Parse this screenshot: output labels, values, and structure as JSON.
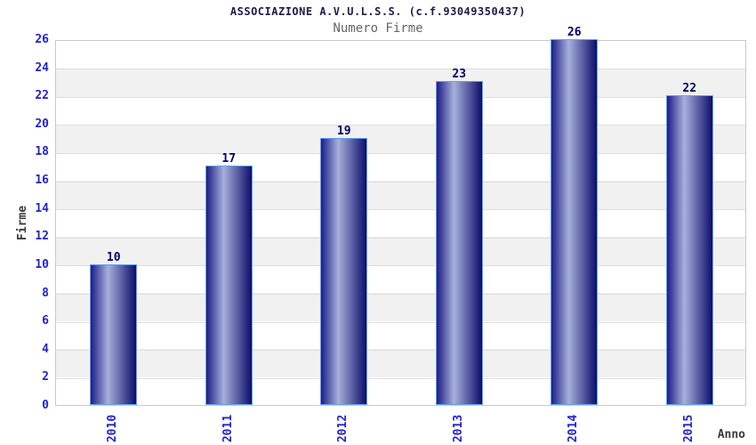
{
  "header": {
    "title": "ASSOCIAZIONE A.V.U.L.S.S. (c.f.93049350437)",
    "subtitle": "Numero Firme"
  },
  "chart_data": {
    "type": "bar",
    "title": "ASSOCIAZIONE A.V.U.L.S.S. (c.f.93049350437)",
    "subtitle": "Numero Firme",
    "categories": [
      "2010",
      "2011",
      "2012",
      "2013",
      "2014",
      "2015"
    ],
    "values": [
      10,
      17,
      19,
      23,
      26,
      22
    ],
    "xlabel": "Anno",
    "ylabel": "Firme",
    "ylim": [
      0,
      26
    ],
    "yticks": [
      0,
      2,
      4,
      6,
      8,
      10,
      12,
      14,
      16,
      18,
      20,
      22,
      24,
      26
    ],
    "grid": "horizontal-bands-alternating",
    "legend_position": "none",
    "colors": {
      "title_text": "#1c1c4e",
      "subtitle_text": "#666666",
      "axis_tick_text": "#2323cd",
      "axis_title_text": "#3a3a3a",
      "value_label_text": "#00006b",
      "bar_edge_dark": "#1d1d87",
      "bar_highlight": "#a7b0db",
      "bar_end_dark": "#0d0d6a",
      "bar_border": "#5ca6f0",
      "band_white": "#ffffff",
      "band_gray": "#f1f1f1",
      "grid_line": "#dddddd",
      "plot_border": "#c9c9c9",
      "background": "#ffffff"
    }
  }
}
